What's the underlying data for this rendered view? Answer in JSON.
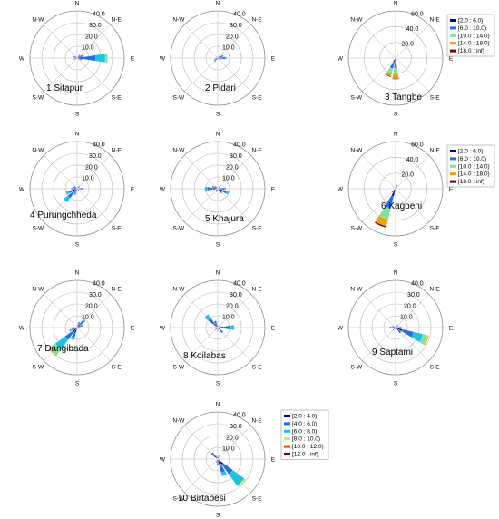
{
  "directions": [
    "N",
    "N-E",
    "E",
    "S-E",
    "S",
    "S-W",
    "W",
    "N-W"
  ],
  "legend_sets": {
    "A": {
      "labels": [
        "[2.0 : 6.0)",
        "[6.0 : 10.0)",
        "[10.0 : 14.0)",
        "[14.0 : 18.0)",
        "[18.0 : inf)"
      ],
      "colors": [
        "#00008b",
        "#1f6fe0",
        "#7fe0a0",
        "#f0a000",
        "#7a0000"
      ]
    },
    "B": {
      "labels": [
        "[2.0 : 4.0)",
        "[4.0 : 6.0)",
        "[6.0 : 8.0)",
        "[8.0 : 10.0)",
        "[10.0 : 12.0)",
        "[12.0 : inf)"
      ],
      "colors": [
        "#00008b",
        "#1f6fe0",
        "#20c0e0",
        "#c0f060",
        "#ff4000",
        "#7a0000"
      ]
    }
  },
  "chart_data": [
    {
      "type": "windrose",
      "title": "1 Sitapur",
      "rmax": 40,
      "ring_labels": [
        "10.0",
        "20.0",
        "30.0",
        "40.0"
      ],
      "legend": null,
      "directions_deg": [
        45,
        67.5,
        90,
        112.5,
        135,
        225,
        247.5,
        270,
        292.5,
        315
      ],
      "bins": [
        [
          2,
          1.5
        ],
        [
          3,
          3
        ],
        [
          6,
          10,
          8,
          2
        ],
        [
          2,
          2
        ],
        [
          1
        ],
        [
          1
        ],
        [
          2,
          1
        ],
        [
          2
        ],
        [
          2,
          1.5
        ],
        [
          1.5,
          1
        ]
      ]
    },
    {
      "type": "windrose",
      "title": "2 Pidari",
      "rmax": 40,
      "ring_labels": [
        "10.0",
        "20.0",
        "30.0",
        "40.0"
      ],
      "legend": null,
      "directions_deg": [
        45,
        67.5,
        90,
        112.5,
        135,
        202.5,
        225,
        247.5,
        270,
        315
      ],
      "bins": [
        [
          2,
          1.5
        ],
        [
          3,
          2
        ],
        [
          3,
          3.5,
          1
        ],
        [
          2,
          1
        ],
        [
          1.5
        ],
        [
          1.5
        ],
        [
          2,
          2
        ],
        [
          2,
          1
        ],
        [
          1.5
        ],
        [
          1.5
        ]
      ]
    },
    {
      "type": "windrose",
      "title": "3 Tangbe",
      "rmax": 60,
      "ring_labels": [
        "20.0",
        "40.0",
        "60.0"
      ],
      "legend": "A",
      "directions_deg": [
        0,
        22.5,
        180,
        202.5
      ],
      "bins": [
        [
          1.5
        ],
        [
          1.5
        ],
        [
          5,
          8,
          7,
          6,
          1
        ],
        [
          6,
          8,
          6,
          4,
          1
        ]
      ]
    },
    {
      "type": "windrose",
      "title": "4 Purungchheda",
      "rmax": 40,
      "ring_labels": [
        "10.0",
        "20.0",
        "30.0",
        "40.0"
      ],
      "legend": null,
      "directions_deg": [
        22.5,
        45,
        90,
        135,
        202.5,
        225,
        247.5,
        270,
        292.5,
        315
      ],
      "bins": [
        [
          1.5
        ],
        [
          2,
          1
        ],
        [
          3,
          2
        ],
        [
          2
        ],
        [
          3,
          2.5
        ],
        [
          4,
          6,
          4.5
        ],
        [
          4,
          4,
          2
        ],
        [
          3,
          2
        ],
        [
          2.5,
          1.5
        ],
        [
          2,
          1
        ]
      ]
    },
    {
      "type": "windrose",
      "title": "5 Khajura",
      "rmax": 40,
      "ring_labels": [
        "10.0",
        "20.0",
        "30.0",
        "40.0"
      ],
      "legend": null,
      "directions_deg": [
        45,
        90,
        112.5,
        135,
        202.5,
        225,
        270,
        292.5,
        315
      ],
      "bins": [
        [
          2,
          1
        ],
        [
          3,
          3,
          1
        ],
        [
          4,
          4,
          2
        ],
        [
          3,
          2
        ],
        [
          2,
          1
        ],
        [
          2,
          1
        ],
        [
          4,
          5,
          2
        ],
        [
          3,
          2
        ],
        [
          2,
          1
        ]
      ]
    },
    {
      "type": "windrose",
      "title": "6 Kagbeni",
      "rmax": 60,
      "ring_labels": [
        "20.0",
        "40.0",
        "60.0"
      ],
      "legend": "A",
      "directions_deg": [
        22.5,
        45,
        202.5,
        225
      ],
      "bins": [
        [
          3,
          2
        ],
        [
          2,
          1
        ],
        [
          10,
          16,
          14,
          9,
          2
        ],
        [
          4,
          2.5
        ]
      ]
    },
    {
      "type": "windrose",
      "title": "7 Dangibada",
      "rmax": 40,
      "ring_labels": [
        "10.0",
        "20.0",
        "30.0",
        "40.0"
      ],
      "legend": null,
      "directions_deg": [
        22.5,
        45,
        67.5,
        202.5,
        225,
        247.5,
        270
      ],
      "bins": [
        [
          3,
          2
        ],
        [
          3,
          4,
          2
        ],
        [
          3,
          2
        ],
        [
          5,
          4,
          2
        ],
        [
          5,
          8,
          10,
          6,
          1
        ],
        [
          3,
          2,
          2
        ],
        [
          2,
          1.5
        ]
      ]
    },
    {
      "type": "windrose",
      "title": "8 Koilabas",
      "rmax": 40,
      "ring_labels": [
        "10.0",
        "20.0",
        "30.0",
        "40.0"
      ],
      "legend": null,
      "directions_deg": [
        45,
        90,
        135,
        180,
        225,
        270,
        315,
        337.5
      ],
      "bins": [
        [
          2,
          1
        ],
        [
          5,
          6,
          3
        ],
        [
          3,
          3
        ],
        [
          2,
          1
        ],
        [
          2,
          1
        ],
        [
          2,
          1
        ],
        [
          4,
          6,
          4
        ],
        [
          3,
          3
        ]
      ]
    },
    {
      "type": "windrose",
      "title": "9 Saptami",
      "rmax": 40,
      "ring_labels": [
        "10.0",
        "20.0",
        "30.0",
        "40.0"
      ],
      "legend": null,
      "directions_deg": [
        45,
        90,
        112.5,
        135,
        225,
        270,
        292.5
      ],
      "bins": [
        [
          2,
          1
        ],
        [
          3,
          2
        ],
        [
          6,
          10,
          8,
          4,
          1
        ],
        [
          3,
          3
        ],
        [
          2,
          1
        ],
        [
          3,
          2
        ],
        [
          2,
          1
        ]
      ]
    },
    {
      "type": "windrose",
      "title": "10 Birtabesi",
      "rmax": 40,
      "ring_labels": [
        "10.0",
        "20.0",
        "30.0",
        "40.0"
      ],
      "legend": "B",
      "directions_deg": [
        22.5,
        135,
        157.5,
        180,
        202.5,
        315,
        337.5
      ],
      "bins": [
        [
          2,
          1
        ],
        [
          6,
          10,
          12,
          2
        ],
        [
          5,
          7,
          3
        ],
        [
          3,
          2
        ],
        [
          2,
          1
        ],
        [
          4,
          3
        ],
        [
          2,
          1
        ]
      ]
    }
  ]
}
